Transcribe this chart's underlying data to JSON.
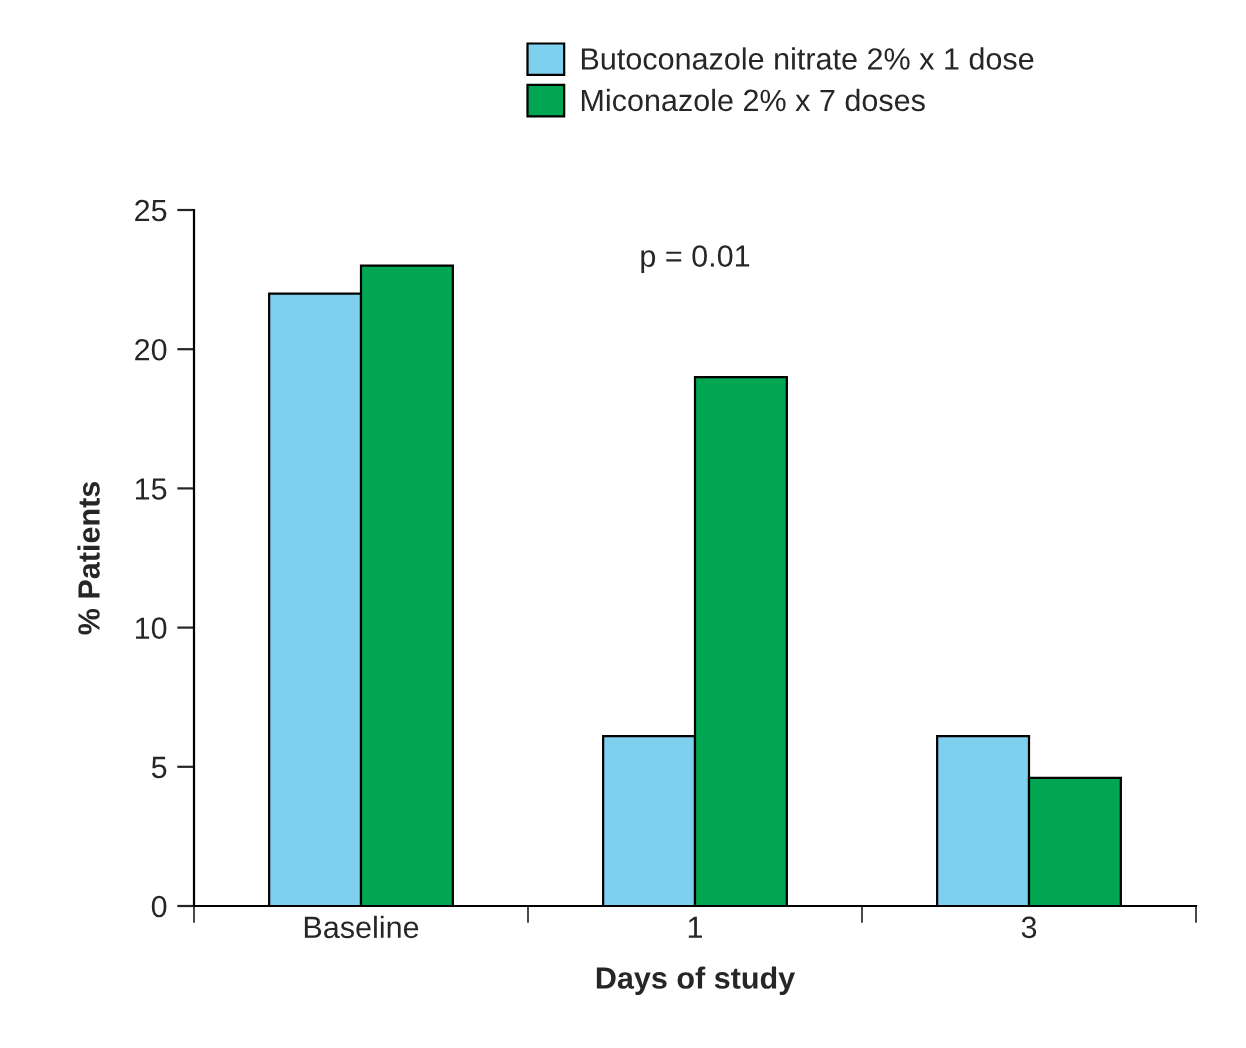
{
  "chart_data": {
    "type": "bar",
    "xlabel": "Days of study",
    "ylabel": "% Patients",
    "categories": [
      "Baseline",
      "1",
      "3"
    ],
    "series": [
      {
        "name": "Butoconazole nitrate 2% x 1 dose",
        "color": "#7fcfef",
        "values": [
          22,
          6.1,
          6.1
        ]
      },
      {
        "name": "Miconazole 2% x 7 doses",
        "color": "#00a651",
        "values": [
          23,
          19,
          4.6
        ]
      }
    ],
    "ylim": [
      0,
      25
    ],
    "yticks": [
      0,
      5,
      10,
      15,
      20,
      25
    ],
    "grid": false,
    "legend": "top",
    "annotations": [
      "p = 0.01"
    ]
  }
}
